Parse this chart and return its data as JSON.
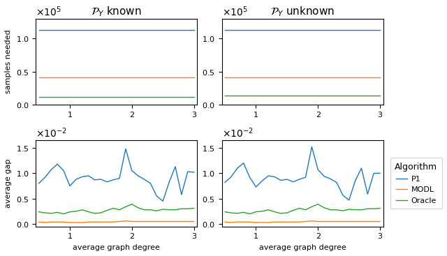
{
  "title_left": "$\\mathcal{P}_Y$ known",
  "title_right": "$\\mathcal{P}_Y$ unknown",
  "xlabel": "average graph degree",
  "ylabel_top": "samples needed",
  "ylabel_bottom": "average gap",
  "legend_labels": [
    "P1",
    "MODL",
    "Oracle"
  ],
  "colors": [
    "#1f77b4",
    "#ff7f0e",
    "#2ca02c"
  ],
  "x": [
    0.5,
    0.6,
    0.7,
    0.8,
    0.9,
    1.0,
    1.1,
    1.2,
    1.3,
    1.4,
    1.5,
    1.6,
    1.7,
    1.8,
    1.9,
    2.0,
    2.1,
    2.2,
    2.3,
    2.4,
    2.5,
    2.6,
    2.7,
    2.8,
    2.9,
    3.0
  ],
  "top_left_P1": [
    1.13,
    1.13,
    1.13,
    1.13,
    1.13,
    1.13,
    1.13,
    1.13,
    1.13,
    1.13,
    1.13,
    1.13,
    1.13,
    1.13,
    1.13,
    1.13,
    1.13,
    1.13,
    1.13,
    1.13,
    1.13,
    1.13,
    1.13,
    1.13,
    1.13,
    1.13
  ],
  "top_left_MODL": [
    0.41,
    0.41,
    0.41,
    0.41,
    0.41,
    0.41,
    0.41,
    0.41,
    0.41,
    0.41,
    0.41,
    0.41,
    0.41,
    0.41,
    0.41,
    0.41,
    0.41,
    0.41,
    0.41,
    0.41,
    0.41,
    0.41,
    0.41,
    0.41,
    0.41,
    0.41
  ],
  "top_left_Oracle": [
    0.12,
    0.12,
    0.12,
    0.12,
    0.12,
    0.12,
    0.12,
    0.12,
    0.12,
    0.12,
    0.12,
    0.12,
    0.12,
    0.12,
    0.12,
    0.12,
    0.12,
    0.12,
    0.12,
    0.12,
    0.12,
    0.12,
    0.12,
    0.12,
    0.12,
    0.12
  ],
  "top_right_P1": [
    1.13,
    1.13,
    1.13,
    1.13,
    1.13,
    1.13,
    1.13,
    1.13,
    1.13,
    1.13,
    1.13,
    1.13,
    1.13,
    1.13,
    1.13,
    1.13,
    1.13,
    1.13,
    1.13,
    1.13,
    1.13,
    1.13,
    1.13,
    1.13,
    1.13,
    1.13
  ],
  "top_right_MODL": [
    0.41,
    0.41,
    0.41,
    0.41,
    0.41,
    0.41,
    0.41,
    0.41,
    0.41,
    0.41,
    0.41,
    0.41,
    0.41,
    0.41,
    0.41,
    0.41,
    0.41,
    0.41,
    0.41,
    0.41,
    0.41,
    0.41,
    0.41,
    0.41,
    0.41,
    0.41
  ],
  "top_right_Oracle": [
    0.14,
    0.14,
    0.14,
    0.14,
    0.14,
    0.14,
    0.14,
    0.14,
    0.14,
    0.14,
    0.14,
    0.14,
    0.14,
    0.14,
    0.14,
    0.14,
    0.14,
    0.14,
    0.14,
    0.14,
    0.14,
    0.14,
    0.14,
    0.14,
    0.14,
    0.14
  ],
  "bot_left_P1": [
    0.8,
    0.92,
    1.07,
    1.18,
    1.05,
    0.75,
    0.88,
    0.93,
    0.95,
    0.87,
    0.88,
    0.83,
    0.87,
    0.9,
    1.48,
    1.05,
    0.95,
    0.88,
    0.8,
    0.55,
    0.45,
    0.82,
    1.13,
    0.58,
    1.03,
    1.02
  ],
  "bot_left_MODL": [
    0.04,
    0.03,
    0.04,
    0.04,
    0.04,
    0.03,
    0.03,
    0.03,
    0.04,
    0.04,
    0.04,
    0.04,
    0.04,
    0.05,
    0.06,
    0.05,
    0.05,
    0.05,
    0.05,
    0.05,
    0.05,
    0.05,
    0.05,
    0.05,
    0.05,
    0.05
  ],
  "bot_left_Oracle": [
    0.24,
    0.22,
    0.21,
    0.23,
    0.2,
    0.24,
    0.25,
    0.28,
    0.24,
    0.21,
    0.22,
    0.27,
    0.31,
    0.28,
    0.34,
    0.39,
    0.32,
    0.28,
    0.28,
    0.26,
    0.29,
    0.28,
    0.28,
    0.3,
    0.3,
    0.31
  ],
  "bot_right_P1": [
    0.82,
    0.93,
    1.1,
    1.2,
    0.92,
    0.73,
    0.85,
    0.95,
    0.93,
    0.86,
    0.88,
    0.83,
    0.88,
    0.92,
    1.52,
    1.07,
    0.94,
    0.89,
    0.82,
    0.57,
    0.47,
    0.85,
    1.1,
    0.59,
    1.0,
    1.0
  ],
  "bot_right_MODL": [
    0.04,
    0.03,
    0.04,
    0.04,
    0.04,
    0.03,
    0.03,
    0.03,
    0.04,
    0.04,
    0.04,
    0.04,
    0.04,
    0.05,
    0.06,
    0.05,
    0.05,
    0.05,
    0.05,
    0.05,
    0.05,
    0.05,
    0.05,
    0.05,
    0.05,
    0.05
  ],
  "bot_right_Oracle": [
    0.24,
    0.22,
    0.21,
    0.23,
    0.2,
    0.24,
    0.25,
    0.28,
    0.24,
    0.21,
    0.22,
    0.27,
    0.31,
    0.28,
    0.34,
    0.39,
    0.32,
    0.28,
    0.28,
    0.26,
    0.29,
    0.28,
    0.28,
    0.3,
    0.3,
    0.31
  ],
  "xlim": [
    0.45,
    3.05
  ],
  "xticks": [
    1,
    2,
    3
  ]
}
